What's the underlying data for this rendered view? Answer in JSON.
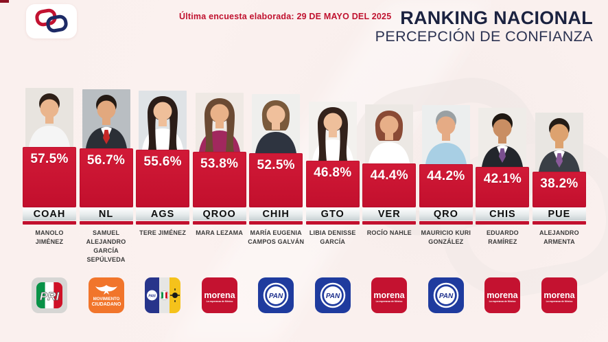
{
  "header": {
    "survey_label": "Última encuesta elaborada:",
    "survey_date": "29 DE MAYO DEL 2025",
    "title_line1": "RANKING NACIONAL",
    "title_line2": "PERCEPCIÓN DE CONFIANZA"
  },
  "colors": {
    "bar_red": "#c2102e",
    "accent_red": "#c0122f",
    "title_navy": "#1b2240",
    "background": "#fbf1ef",
    "strip_silver": "#d2d9db",
    "pan_blue": "#1f3b9e",
    "mc_orange": "#f1752b",
    "morena_red": "#c41230",
    "pri_green": "#089247",
    "prd_yellow": "#f5c21b"
  },
  "parties": {
    "pri": {
      "label": "PRI"
    },
    "mc": {
      "line1": "MOVIMIENTO",
      "line2": "CIUDADANO"
    },
    "coalition": {
      "pan": "PAN"
    },
    "morena": {
      "label": "morena",
      "tagline": "La esperanza de México"
    },
    "pan": {
      "label": "PAN"
    }
  },
  "candidates": [
    {
      "pct": 57.5,
      "pct_label": "57.5%",
      "state": "COAH",
      "name": "MANOLO JIMÉNEZ",
      "party": "pri",
      "photo": {
        "style": "m",
        "bg": "#e8e4df",
        "hair": "#2e2018",
        "skin": "#eab58d",
        "top": "#f5f5f5",
        "suit": null,
        "accent": null
      }
    },
    {
      "pct": 56.7,
      "pct_label": "56.7%",
      "state": "NL",
      "name": "SAMUEL ALEJANDRO GARCÍA SEPÚLVEDA",
      "party": "mc",
      "photo": {
        "style": "m",
        "bg": "#b9bec2",
        "hair": "#241a14",
        "skin": "#e2a87e",
        "top": "#2b2f36",
        "suit": "#2b2f36",
        "accent": "#c62828"
      }
    },
    {
      "pct": 55.6,
      "pct_label": "55.6%",
      "state": "AGS",
      "name": "TERE JIMÉNEZ",
      "party": "coalition",
      "photo": {
        "style": "f-long",
        "bg": "#dfe3e6",
        "hair": "#2b1d18",
        "skin": "#efbf9a",
        "top": "#ffffff",
        "suit": null,
        "accent": null
      }
    },
    {
      "pct": 53.8,
      "pct_label": "53.8%",
      "state": "QROO",
      "name": "MARA LEZAMA",
      "party": "morena",
      "photo": {
        "style": "f-long",
        "bg": "#efe9e4",
        "hair": "#6b4a33",
        "skin": "#e9b289",
        "top": "#a1285e",
        "suit": null,
        "accent": null
      }
    },
    {
      "pct": 52.5,
      "pct_label": "52.5%",
      "state": "CHIH",
      "name": "MARÍA EUGENIA CAMPOS GALVÁN",
      "party": "pan",
      "photo": {
        "style": "f-short",
        "bg": "#efefed",
        "hair": "#7a5a3c",
        "skin": "#f0c09c",
        "top": "#2e3440",
        "suit": null,
        "accent": null
      }
    },
    {
      "pct": 46.8,
      "pct_label": "46.8%",
      "state": "GTO",
      "name": "LIBIA DENISSE GARCÍA",
      "party": "pan",
      "photo": {
        "style": "f-long",
        "bg": "#f3f1ee",
        "hair": "#33221b",
        "skin": "#eebf9b",
        "top": "#ffffff",
        "suit": null,
        "accent": null
      }
    },
    {
      "pct": 44.4,
      "pct_label": "44.4%",
      "state": "VER",
      "name": "ROCÍO NAHLE",
      "party": "morena",
      "photo": {
        "style": "f-short",
        "bg": "#ece8e4",
        "hair": "#8a4a35",
        "skin": "#e7af88",
        "top": "#ffffff",
        "suit": null,
        "accent": null
      }
    },
    {
      "pct": 44.2,
      "pct_label": "44.2%",
      "state": "QRO",
      "name": "MAURICIO KURI GONZÁLEZ",
      "party": "pan",
      "photo": {
        "style": "m",
        "bg": "#eceeee",
        "hair": "#9aa0a3",
        "skin": "#e5ab85",
        "top": "#a8cfe4",
        "suit": null,
        "accent": null
      }
    },
    {
      "pct": 42.1,
      "pct_label": "42.1%",
      "state": "CHIS",
      "name": "EDUARDO RAMÍREZ",
      "party": "morena",
      "photo": {
        "style": "m",
        "bg": "#efece8",
        "hair": "#1f1812",
        "skin": "#c98e63",
        "top": "#23262c",
        "suit": "#23262c",
        "accent": "#7a4f8f"
      }
    },
    {
      "pct": 38.2,
      "pct_label": "38.2%",
      "state": "PUE",
      "name": "ALEJANDRO ARMENTA",
      "party": "morena",
      "photo": {
        "style": "m",
        "bg": "#e9e6e2",
        "hair": "#241c16",
        "skin": "#dda26f",
        "top": "#3a3f46",
        "suit": "#3a3f46",
        "accent": "#8a5a9a"
      }
    }
  ],
  "chart_data": {
    "type": "bar",
    "orientation": "vertical",
    "title": "RANKING NACIONAL",
    "subtitle": "PERCEPCIÓN DE CONFIANZA",
    "annotation": "Última encuesta elaborada: 29 DE MAYO DEL 2025",
    "categories": [
      "COAH",
      "NL",
      "AGS",
      "QROO",
      "CHIH",
      "GTO",
      "VER",
      "QRO",
      "CHIS",
      "PUE"
    ],
    "values": [
      57.5,
      56.7,
      55.6,
      53.8,
      52.5,
      46.8,
      44.4,
      44.2,
      42.1,
      38.2
    ],
    "value_labels": [
      "57.5%",
      "56.7%",
      "55.6%",
      "53.8%",
      "52.5%",
      "46.8%",
      "44.4%",
      "44.2%",
      "42.1%",
      "38.2%"
    ],
    "candidates": [
      "MANOLO JIMÉNEZ",
      "SAMUEL ALEJANDRO GARCÍA SEPÚLVEDA",
      "TERE JIMÉNEZ",
      "MARA LEZAMA",
      "MARÍA EUGENIA CAMPOS GALVÁN",
      "LIBIA DENISSE GARCÍA",
      "ROCÍO NAHLE",
      "MAURICIO KURI GONZÁLEZ",
      "EDUARDO RAMÍREZ",
      "ALEJANDRO ARMENTA"
    ],
    "parties": [
      "PRI",
      "Movimiento Ciudadano",
      "Coalición PAN-PRI-PRD",
      "Morena",
      "PAN",
      "PAN",
      "Morena",
      "PAN",
      "Morena",
      "Morena"
    ],
    "unit": "%",
    "bar_color": "#c2102e",
    "grid": false,
    "legend": false,
    "sorted": "descending"
  }
}
